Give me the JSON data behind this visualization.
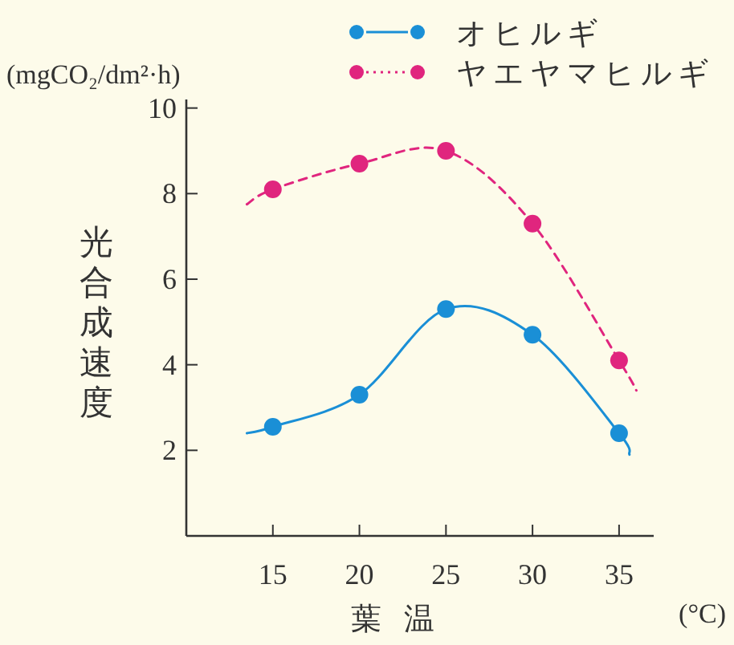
{
  "chart_data": {
    "type": "line",
    "xlabel": "葉温",
    "ylabel": "光合成速度",
    "annotations": [
      "(mgCO₂/dm²·h)",
      "(°C)"
    ],
    "xlim": [
      10,
      37
    ],
    "ylim": [
      0,
      10.2
    ],
    "xticks": [
      15,
      20,
      25,
      30,
      35
    ],
    "yticks": [
      2,
      4,
      6,
      8,
      10
    ],
    "legend": "top right",
    "series": [
      {
        "name": "オヒルギ",
        "color": "#1a8fd6",
        "line_style": "solid",
        "marker": "none",
        "x": [
          13.5,
          15,
          20,
          25,
          30,
          35,
          35.6
        ],
        "values": [
          2.4,
          2.55,
          3.3,
          5.3,
          4.7,
          2.4,
          1.9
        ]
      },
      {
        "name": "ヤエヤマヒルギ",
        "color": "#e0257e",
        "line_style": "dashed",
        "marker": "none",
        "x": [
          13.5,
          15,
          20,
          25,
          30,
          35,
          36
        ],
        "values": [
          7.75,
          8.1,
          8.7,
          9.0,
          7.3,
          4.1,
          3.4
        ]
      },
      {
        "type": "scatter",
        "color": "#1a8fd6",
        "marker": "circle",
        "x": [
          15,
          20,
          25,
          30,
          35
        ],
        "values": [
          2.55,
          3.3,
          5.3,
          4.7,
          2.4
        ]
      },
      {
        "type": "scatter",
        "color": "#e0257e",
        "marker": "circle",
        "x": [
          15,
          20,
          25,
          30,
          35
        ],
        "values": [
          8.1,
          8.7,
          9.0,
          7.3,
          4.1
        ]
      }
    ]
  }
}
